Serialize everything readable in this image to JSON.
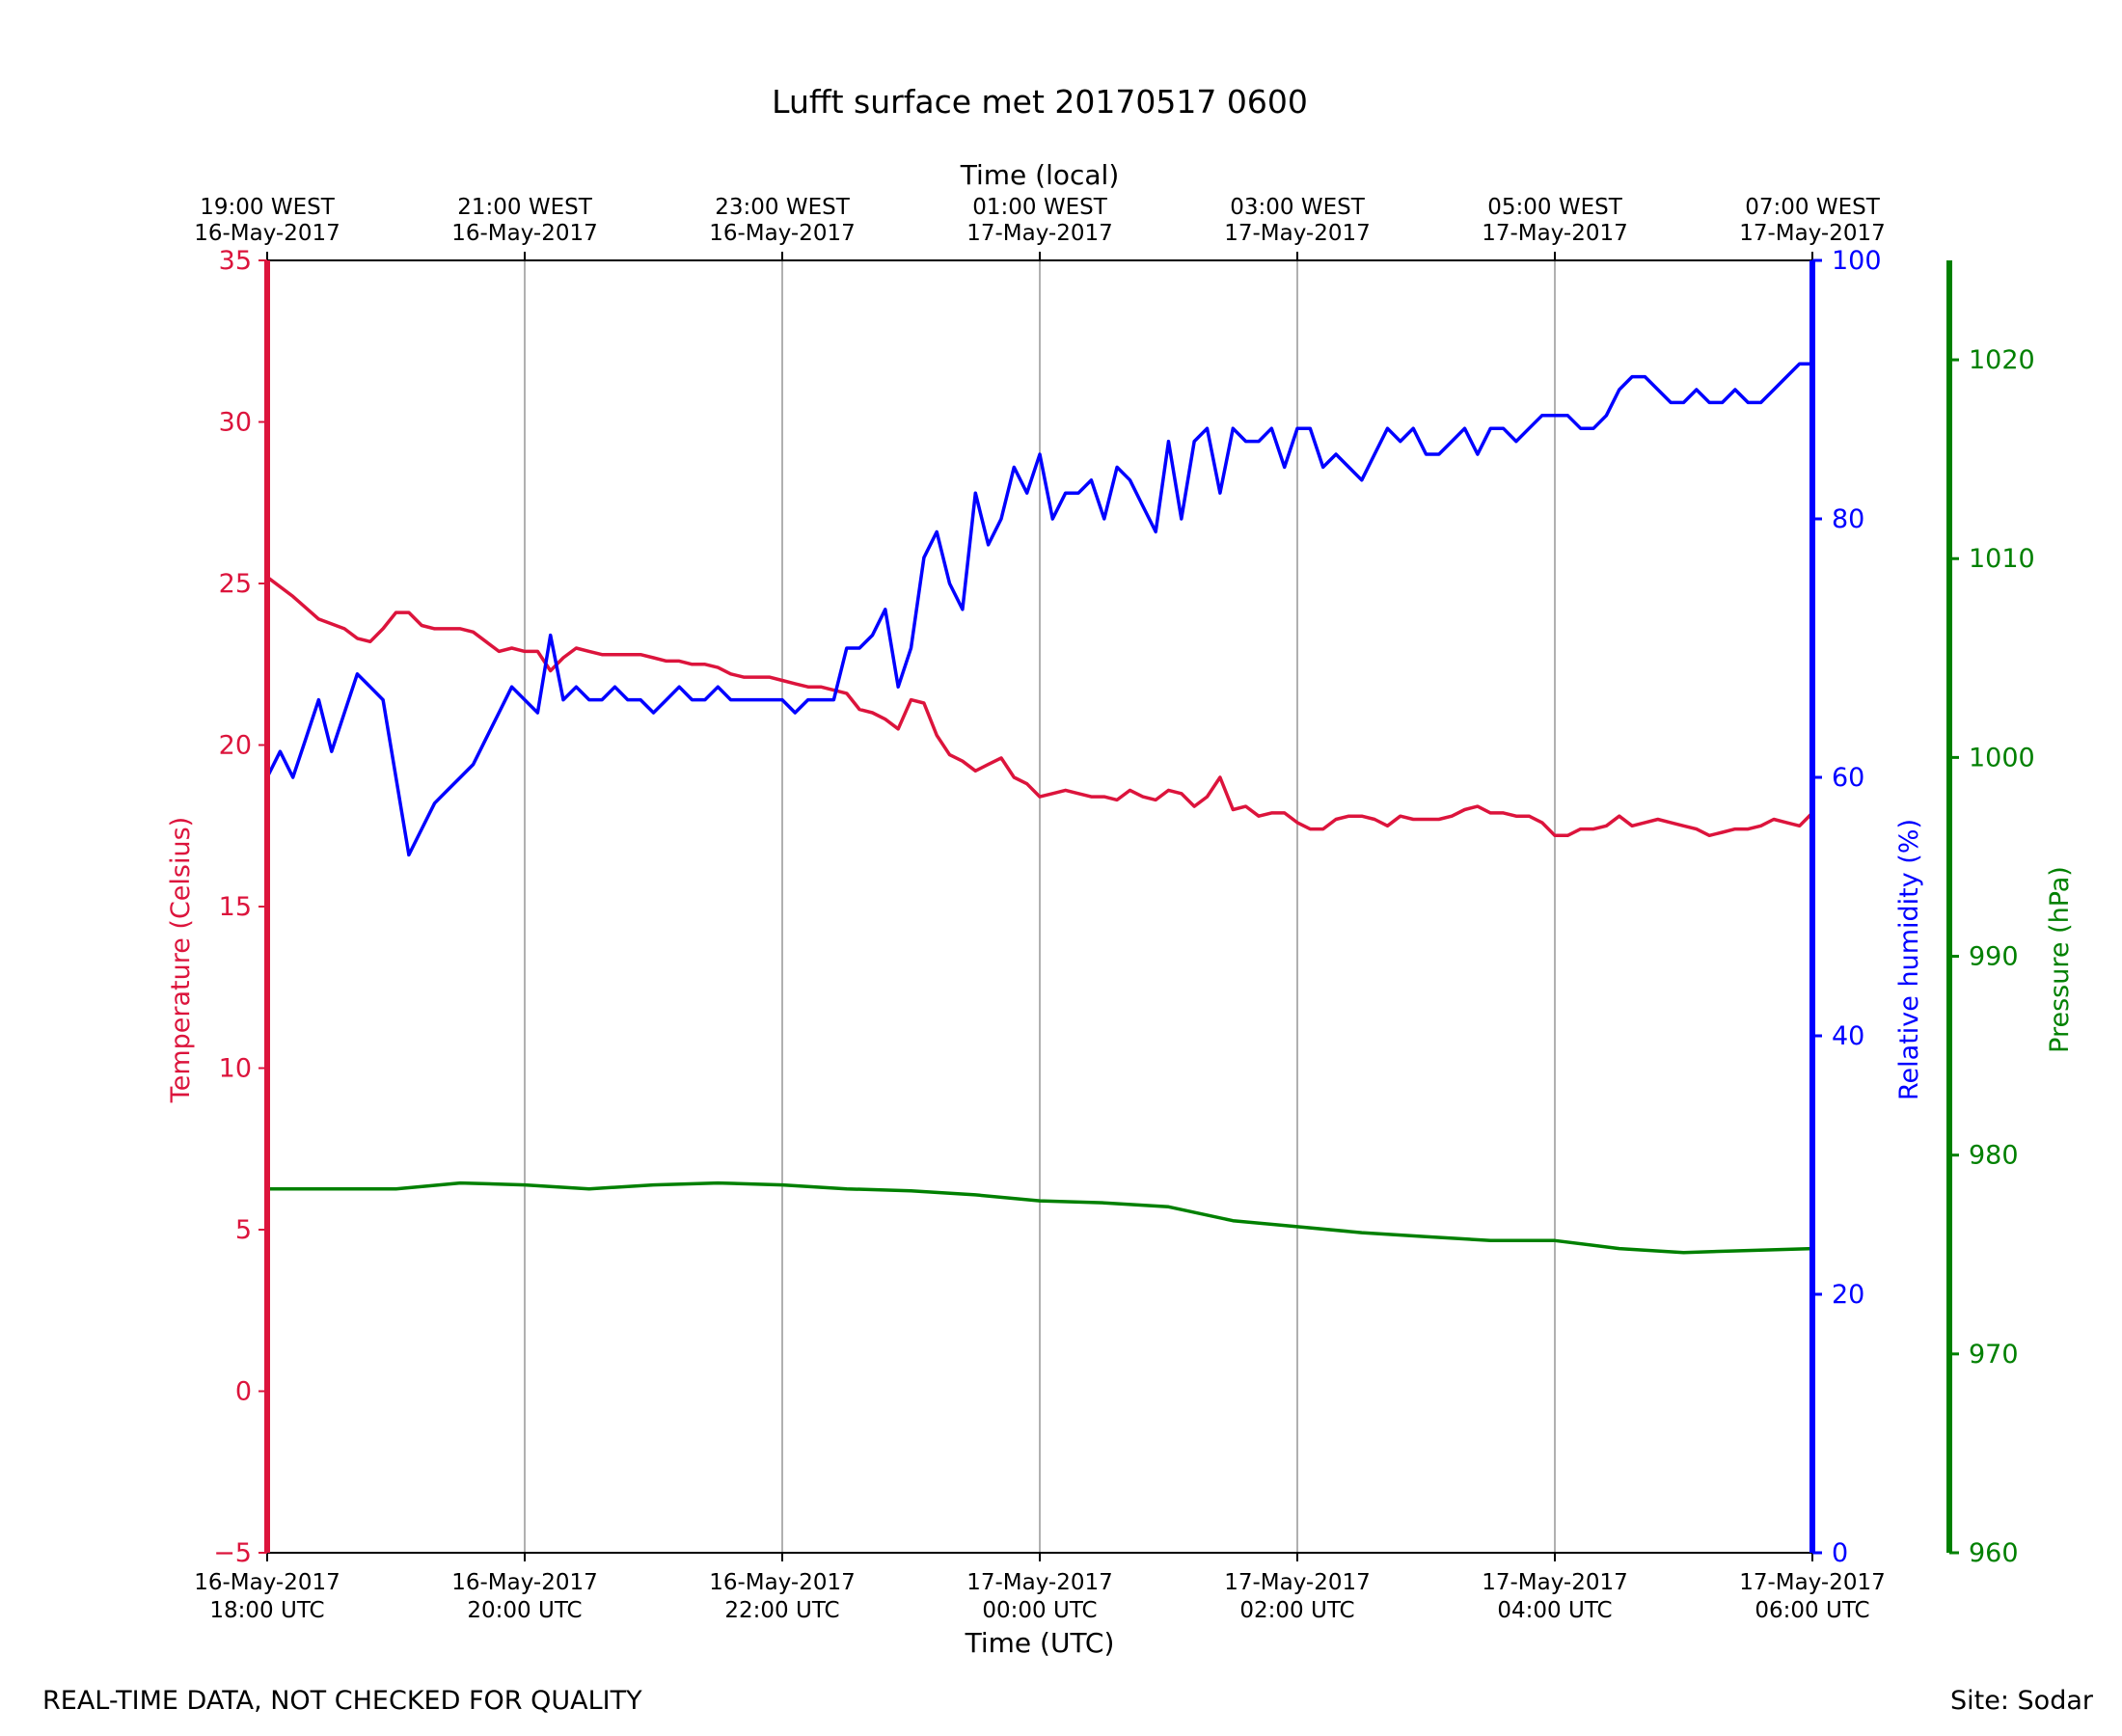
{
  "chart_data": {
    "type": "line",
    "title": "Lufft surface met 20170517 0600",
    "xlabel": "Time (UTC)",
    "x2label": "Time (local)",
    "ylabel": "Temperature (Celsius)",
    "y2label": "Relative humidity (%)",
    "y3label": "Pressure (hPa)",
    "xlim": [
      0,
      6
    ],
    "ylim": [
      -5,
      35
    ],
    "y2lim": [
      0,
      100
    ],
    "y3lim": [
      960,
      1025
    ],
    "grid": "vertical",
    "x_ticks": [
      0,
      1,
      2,
      3,
      4,
      5,
      6
    ],
    "x_tick_labels": [
      [
        "16-May-2017",
        "18:00 UTC"
      ],
      [
        "16-May-2017",
        "20:00 UTC"
      ],
      [
        "16-May-2017",
        "22:00 UTC"
      ],
      [
        "17-May-2017",
        "00:00 UTC"
      ],
      [
        "17-May-2017",
        "02:00 UTC"
      ],
      [
        "17-May-2017",
        "04:00 UTC"
      ],
      [
        "17-May-2017",
        "06:00 UTC"
      ]
    ],
    "x2_tick_labels": [
      [
        "19:00 WEST",
        "16-May-2017"
      ],
      [
        "21:00 WEST",
        "16-May-2017"
      ],
      [
        "23:00 WEST",
        "16-May-2017"
      ],
      [
        "01:00 WEST",
        "17-May-2017"
      ],
      [
        "03:00 WEST",
        "17-May-2017"
      ],
      [
        "05:00 WEST",
        "17-May-2017"
      ],
      [
        "07:00 WEST",
        "17-May-2017"
      ]
    ],
    "y_ticks": [
      -5,
      0,
      5,
      10,
      15,
      20,
      25,
      30,
      35
    ],
    "y_tick_labels": [
      "−5",
      "0",
      "5",
      "10",
      "15",
      "20",
      "25",
      "30",
      "35"
    ],
    "y2_ticks": [
      0,
      20,
      40,
      60,
      80,
      100
    ],
    "y2_tick_labels": [
      "0",
      "20",
      "40",
      "60",
      "80",
      "100"
    ],
    "y3_ticks": [
      960,
      970,
      980,
      990,
      1000,
      1010,
      1020
    ],
    "y3_tick_labels": [
      "960",
      "970",
      "980",
      "990",
      "1000",
      "1010",
      "1020"
    ],
    "series": [
      {
        "key": "temperature",
        "axis": "y",
        "color": "#dc143c",
        "x": [
          0.0,
          0.1,
          0.2,
          0.3,
          0.35,
          0.4,
          0.45,
          0.5,
          0.55,
          0.6,
          0.65,
          0.7,
          0.75,
          0.8,
          0.85,
          0.9,
          0.95,
          1.0,
          1.05,
          1.1,
          1.15,
          1.2,
          1.25,
          1.3,
          1.35,
          1.4,
          1.45,
          1.5,
          1.55,
          1.6,
          1.65,
          1.7,
          1.75,
          1.8,
          1.85,
          1.9,
          1.95,
          2.0,
          2.05,
          2.1,
          2.15,
          2.2,
          2.25,
          2.3,
          2.35,
          2.4,
          2.45,
          2.5,
          2.55,
          2.6,
          2.65,
          2.7,
          2.75,
          2.8,
          2.85,
          2.9,
          2.95,
          3.0,
          3.05,
          3.1,
          3.15,
          3.2,
          3.25,
          3.3,
          3.35,
          3.4,
          3.45,
          3.5,
          3.55,
          3.6,
          3.65,
          3.7,
          3.75,
          3.8,
          3.85,
          3.9,
          3.95,
          4.0,
          4.05,
          4.1,
          4.15,
          4.2,
          4.25,
          4.3,
          4.35,
          4.4,
          4.45,
          4.5,
          4.55,
          4.6,
          4.65,
          4.7,
          4.75,
          4.8,
          4.85,
          4.9,
          4.95,
          5.0,
          5.05,
          5.1,
          5.15,
          5.2,
          5.25,
          5.3,
          5.35,
          5.4,
          5.45,
          5.5,
          5.55,
          5.6,
          5.65,
          5.7,
          5.75,
          5.8,
          5.85,
          5.9,
          5.95,
          6.0
        ],
        "values": [
          25.2,
          24.6,
          23.9,
          23.6,
          23.3,
          23.2,
          23.6,
          24.1,
          24.1,
          23.7,
          23.6,
          23.6,
          23.6,
          23.5,
          23.2,
          22.9,
          23.0,
          22.9,
          22.9,
          22.3,
          22.7,
          23.0,
          22.9,
          22.8,
          22.8,
          22.8,
          22.8,
          22.7,
          22.6,
          22.6,
          22.5,
          22.5,
          22.4,
          22.2,
          22.1,
          22.1,
          22.1,
          22.0,
          21.9,
          21.8,
          21.8,
          21.7,
          21.6,
          21.1,
          21.0,
          20.8,
          20.5,
          21.4,
          21.3,
          20.3,
          19.7,
          19.5,
          19.2,
          19.4,
          19.6,
          19.0,
          18.8,
          18.4,
          18.5,
          18.6,
          18.5,
          18.4,
          18.4,
          18.3,
          18.6,
          18.4,
          18.3,
          18.6,
          18.5,
          18.1,
          18.4,
          19.0,
          18.0,
          18.1,
          17.8,
          17.9,
          17.9,
          17.6,
          17.4,
          17.4,
          17.7,
          17.8,
          17.8,
          17.7,
          17.5,
          17.8,
          17.7,
          17.7,
          17.7,
          17.8,
          18.0,
          18.1,
          17.9,
          17.9,
          17.8,
          17.8,
          17.6,
          17.2,
          17.2,
          17.4,
          17.4,
          17.5,
          17.8,
          17.5,
          17.6,
          17.7,
          17.6,
          17.5,
          17.4,
          17.2,
          17.3,
          17.4,
          17.4,
          17.5,
          17.7,
          17.6,
          17.5,
          17.9
        ]
      },
      {
        "key": "humidity",
        "axis": "y2",
        "color": "#0000ff",
        "x": [
          0.0,
          0.05,
          0.1,
          0.15,
          0.2,
          0.25,
          0.3,
          0.35,
          0.4,
          0.45,
          0.5,
          0.55,
          0.6,
          0.65,
          0.7,
          0.75,
          0.8,
          0.85,
          0.9,
          0.95,
          1.0,
          1.05,
          1.1,
          1.15,
          1.2,
          1.25,
          1.3,
          1.35,
          1.4,
          1.45,
          1.5,
          1.55,
          1.6,
          1.65,
          1.7,
          1.75,
          1.8,
          1.85,
          1.9,
          1.95,
          2.0,
          2.05,
          2.1,
          2.15,
          2.2,
          2.25,
          2.3,
          2.35,
          2.4,
          2.45,
          2.5,
          2.55,
          2.6,
          2.65,
          2.7,
          2.75,
          2.8,
          2.85,
          2.9,
          2.95,
          3.0,
          3.05,
          3.1,
          3.15,
          3.2,
          3.25,
          3.3,
          3.35,
          3.4,
          3.45,
          3.5,
          3.55,
          3.6,
          3.65,
          3.7,
          3.75,
          3.8,
          3.85,
          3.9,
          3.95,
          4.0,
          4.05,
          4.1,
          4.15,
          4.2,
          4.25,
          4.3,
          4.35,
          4.4,
          4.45,
          4.5,
          4.55,
          4.6,
          4.65,
          4.7,
          4.75,
          4.8,
          4.85,
          4.9,
          4.95,
          5.0,
          5.05,
          5.1,
          5.15,
          5.2,
          5.25,
          5.3,
          5.35,
          5.4,
          5.45,
          5.5,
          5.55,
          5.6,
          5.65,
          5.7,
          5.75,
          5.8,
          5.85,
          5.9,
          5.95,
          6.0
        ],
        "values": [
          60,
          62,
          60,
          63,
          66,
          62,
          65,
          68,
          67,
          66,
          60,
          54,
          56,
          58,
          59,
          60,
          61,
          63,
          65,
          67,
          66,
          65,
          71,
          66,
          67,
          66,
          66,
          67,
          66,
          66,
          65,
          66,
          67,
          66,
          66,
          67,
          66,
          66,
          66,
          66,
          66,
          65,
          66,
          66,
          66,
          70,
          70,
          71,
          73,
          67,
          70,
          77,
          79,
          75,
          73,
          82,
          78,
          80,
          84,
          82,
          85,
          80,
          82,
          82,
          83,
          80,
          84,
          83,
          81,
          79,
          86,
          80,
          86,
          87,
          82,
          87,
          86,
          86,
          87,
          84,
          87,
          87,
          84,
          85,
          84,
          83,
          85,
          87,
          86,
          87,
          85,
          85,
          86,
          87,
          85,
          87,
          87,
          86,
          87,
          88,
          88,
          88,
          87,
          87,
          88,
          90,
          91,
          91,
          90,
          89,
          89,
          90,
          89,
          89,
          90,
          89,
          89,
          90,
          91,
          92,
          92
        ]
      },
      {
        "key": "pressure",
        "axis": "y3",
        "color": "#008000",
        "x": [
          0.0,
          0.25,
          0.5,
          0.75,
          1.0,
          1.25,
          1.5,
          1.75,
          2.0,
          2.25,
          2.5,
          2.75,
          3.0,
          3.25,
          3.5,
          3.75,
          4.0,
          4.25,
          4.5,
          4.75,
          5.0,
          5.25,
          5.5,
          5.75,
          6.0
        ],
        "values": [
          978.3,
          978.3,
          978.3,
          978.6,
          978.5,
          978.3,
          978.5,
          978.6,
          978.5,
          978.3,
          978.2,
          978.0,
          977.7,
          977.6,
          977.4,
          976.7,
          976.4,
          976.1,
          975.9,
          975.7,
          975.7,
          975.3,
          975.1,
          975.2,
          975.3
        ]
      }
    ]
  },
  "footer": {
    "left": "REAL-TIME DATA, NOT CHECKED FOR QUALITY",
    "right": "Site: Sodar"
  }
}
